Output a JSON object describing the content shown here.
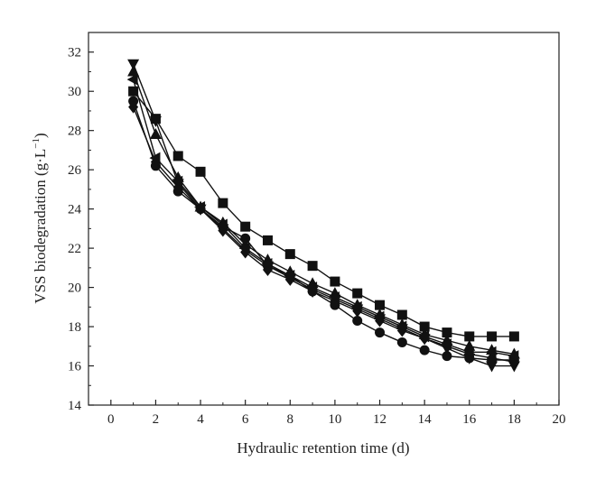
{
  "chart_data": {
    "type": "line",
    "xlabel": "Hydraulic retention time (d)",
    "ylabel_main": "VSS biodegradation (g·L",
    "ylabel_exp": "−1",
    "ylabel_close": ")",
    "xlim": [
      -1,
      20
    ],
    "ylim": [
      14,
      33
    ],
    "xticks": [
      0,
      2,
      4,
      6,
      8,
      10,
      12,
      14,
      16,
      18,
      20
    ],
    "yticks": [
      14,
      16,
      18,
      20,
      22,
      24,
      26,
      28,
      30,
      32
    ],
    "grid": false,
    "x": [
      1,
      2,
      3,
      4,
      5,
      6,
      7,
      8,
      9,
      10,
      11,
      12,
      13,
      14,
      15,
      16,
      17,
      18
    ],
    "series": [
      {
        "marker": "square",
        "values": [
          30.0,
          28.6,
          26.7,
          25.9,
          24.3,
          23.1,
          22.4,
          21.7,
          21.1,
          20.3,
          19.7,
          19.1,
          18.6,
          18.0,
          17.7,
          17.5,
          17.5,
          17.5
        ]
      },
      {
        "marker": "circle",
        "values": [
          29.5,
          26.2,
          24.9,
          24.0,
          23.1,
          22.5,
          21.1,
          20.6,
          19.8,
          19.1,
          18.3,
          17.7,
          17.2,
          16.8,
          16.5,
          16.4,
          16.3,
          16.3
        ]
      },
      {
        "marker": "triangle-up",
        "values": [
          31.0,
          27.8,
          25.6,
          24.1,
          23.3,
          22.2,
          21.4,
          20.8,
          20.2,
          19.7,
          19.1,
          18.6,
          18.1,
          17.6,
          17.3,
          17.0,
          16.8,
          16.6
        ]
      },
      {
        "marker": "triangle-down",
        "values": [
          31.4,
          28.5,
          25.3,
          24.0,
          23.0,
          21.9,
          21.1,
          20.5,
          19.9,
          19.4,
          18.9,
          18.4,
          17.9,
          17.4,
          16.9,
          16.4,
          16.0,
          16.0
        ]
      },
      {
        "marker": "diamond",
        "values": [
          29.2,
          26.4,
          25.1,
          24.0,
          22.9,
          21.8,
          20.9,
          20.4,
          19.8,
          19.3,
          18.8,
          18.3,
          17.8,
          17.4,
          17.0,
          16.6,
          16.4,
          16.2
        ]
      },
      {
        "marker": "triangle-left",
        "values": [
          30.6,
          26.6,
          25.4,
          24.1,
          23.2,
          22.0,
          21.2,
          20.6,
          20.0,
          19.5,
          19.0,
          18.5,
          18.0,
          17.5,
          17.1,
          16.7,
          16.7,
          16.5
        ]
      }
    ]
  }
}
